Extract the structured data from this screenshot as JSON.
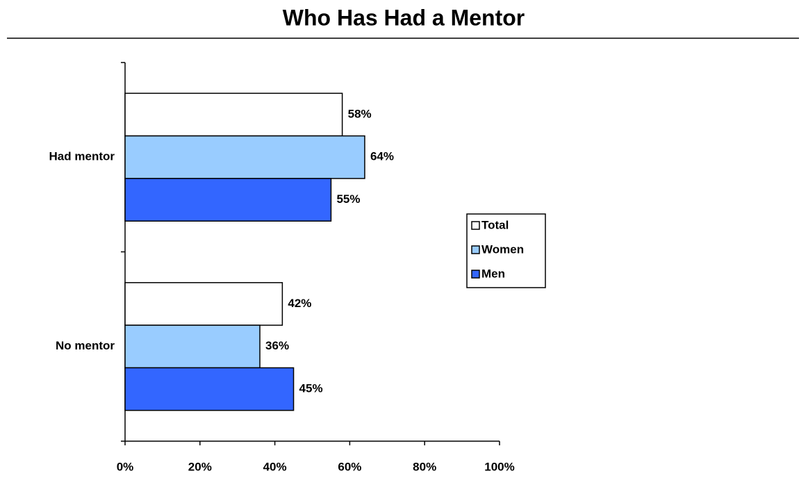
{
  "chart_data": {
    "type": "hbar",
    "title": "Who Has Had a Mentor",
    "categories": [
      "Had mentor",
      "No mentor"
    ],
    "series": [
      {
        "name": "Total",
        "color": "#ffffff",
        "values": [
          58,
          42
        ],
        "value_labels": [
          "58%",
          "42%"
        ]
      },
      {
        "name": "Women",
        "color": "#99ccff",
        "values": [
          64,
          36
        ],
        "value_labels": [
          "64%",
          "36%"
        ]
      },
      {
        "name": "Men",
        "color": "#3366ff",
        "values": [
          55,
          45
        ],
        "value_labels": [
          "55%",
          "45%"
        ]
      }
    ],
    "xlim": [
      0,
      100
    ],
    "xticks": [
      {
        "value": 0,
        "label": "0%"
      },
      {
        "value": 20,
        "label": "20%"
      },
      {
        "value": 40,
        "label": "40%"
      },
      {
        "value": 60,
        "label": "60%"
      },
      {
        "value": 80,
        "label": "80%"
      },
      {
        "value": 100,
        "label": "100%"
      }
    ],
    "legend": "right"
  }
}
